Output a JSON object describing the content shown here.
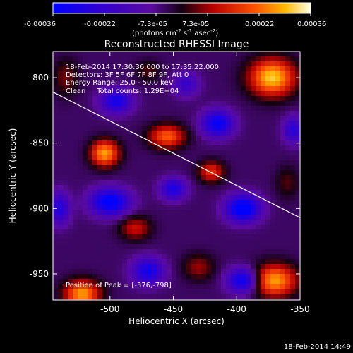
{
  "colorbar": {
    "ticks": [
      "-0.00036",
      "-0.00022",
      "-7.3e-05",
      "7.3e-05",
      "0.00022",
      "0.00036"
    ],
    "units_text": "(photons cm",
    "units_sup1": "-2",
    "units_mid": " s",
    "units_sup2": "-1",
    "units_end": " asec",
    "units_sup3": "-2",
    "units_close": ")"
  },
  "info": {
    "line1": "18-Feb-2014 17:30:36.000 to 17:35:22.000",
    "line2": "Detectors: 3F 5F 6F 7F 8F 9F, Att 0",
    "line3": "Energy Range: 25.0 - 50.0 keV",
    "line4": "Clean     Total counts: 1.29E+04",
    "peak": "Position of Peak = [-376,-798]"
  },
  "footer_timestamp": "18-Feb-2014 14:49",
  "colors": {
    "line": "#ffffff",
    "background": "#000000"
  },
  "chart_data": {
    "type": "heatmap",
    "title": "Reconstructed RHESSI Image",
    "xlabel": "Heliocentric X (arcsec)",
    "ylabel": "Heliocentric Y (arcsec)",
    "xlim": [
      -545,
      -350
    ],
    "ylim": [
      -970,
      -780
    ],
    "xticks": [
      -500,
      -450,
      -400,
      -350
    ],
    "yticks": [
      -800,
      -850,
      -900,
      -950
    ],
    "xtick_labels": [
      "-500",
      "-450",
      "-400",
      "-350"
    ],
    "ytick_labels": [
      "-800",
      "-850",
      "-900",
      "-950"
    ],
    "colorbar_range": [
      -0.00036,
      0.00036
    ],
    "limb_line": {
      "x": [
        -545,
        -350
      ],
      "y": [
        -811,
        -907
      ]
    },
    "grid": false,
    "sources": [
      {
        "x": -372,
        "y": -800,
        "value": 0.00036,
        "w": 18,
        "h": 14
      },
      {
        "x": -504,
        "y": -858,
        "value": 0.00032,
        "w": 11,
        "h": 10
      },
      {
        "x": -455,
        "y": -845,
        "value": 0.00026,
        "w": 14,
        "h": 9
      },
      {
        "x": -522,
        "y": -965,
        "value": 0.00032,
        "w": 14,
        "h": 10
      },
      {
        "x": -370,
        "y": -955,
        "value": 0.00032,
        "w": 17,
        "h": 12
      },
      {
        "x": -420,
        "y": -872,
        "value": 0.0002,
        "w": 10,
        "h": 8
      },
      {
        "x": -480,
        "y": -915,
        "value": 0.00016,
        "w": 12,
        "h": 9
      },
      {
        "x": -430,
        "y": -945,
        "value": 0.00012,
        "w": 12,
        "h": 10
      },
      {
        "x": -535,
        "y": -800,
        "value": 0.0001,
        "w": 10,
        "h": 14
      },
      {
        "x": -360,
        "y": -880,
        "value": 8e-05,
        "w": 9,
        "h": 12
      },
      {
        "x": -470,
        "y": -795,
        "value": 8e-05,
        "w": 10,
        "h": 8
      },
      {
        "x": -500,
        "y": -895,
        "value": -0.00034,
        "w": 15,
        "h": 10
      },
      {
        "x": -395,
        "y": -900,
        "value": -0.00036,
        "w": 13,
        "h": 10
      },
      {
        "x": -415,
        "y": -835,
        "value": -0.0003,
        "w": 12,
        "h": 10
      },
      {
        "x": -495,
        "y": -818,
        "value": -0.00026,
        "w": 12,
        "h": 9
      },
      {
        "x": -450,
        "y": -885,
        "value": -0.00024,
        "w": 10,
        "h": 8
      },
      {
        "x": -470,
        "y": -948,
        "value": -0.00026,
        "w": 12,
        "h": 10
      },
      {
        "x": -395,
        "y": -955,
        "value": -0.0003,
        "w": 12,
        "h": 9
      },
      {
        "x": -540,
        "y": -900,
        "value": -0.00022,
        "w": 8,
        "h": 12
      },
      {
        "x": -355,
        "y": -840,
        "value": -0.0002,
        "w": 8,
        "h": 10
      },
      {
        "x": -440,
        "y": -805,
        "value": -0.00016,
        "w": 10,
        "h": 9
      }
    ]
  }
}
